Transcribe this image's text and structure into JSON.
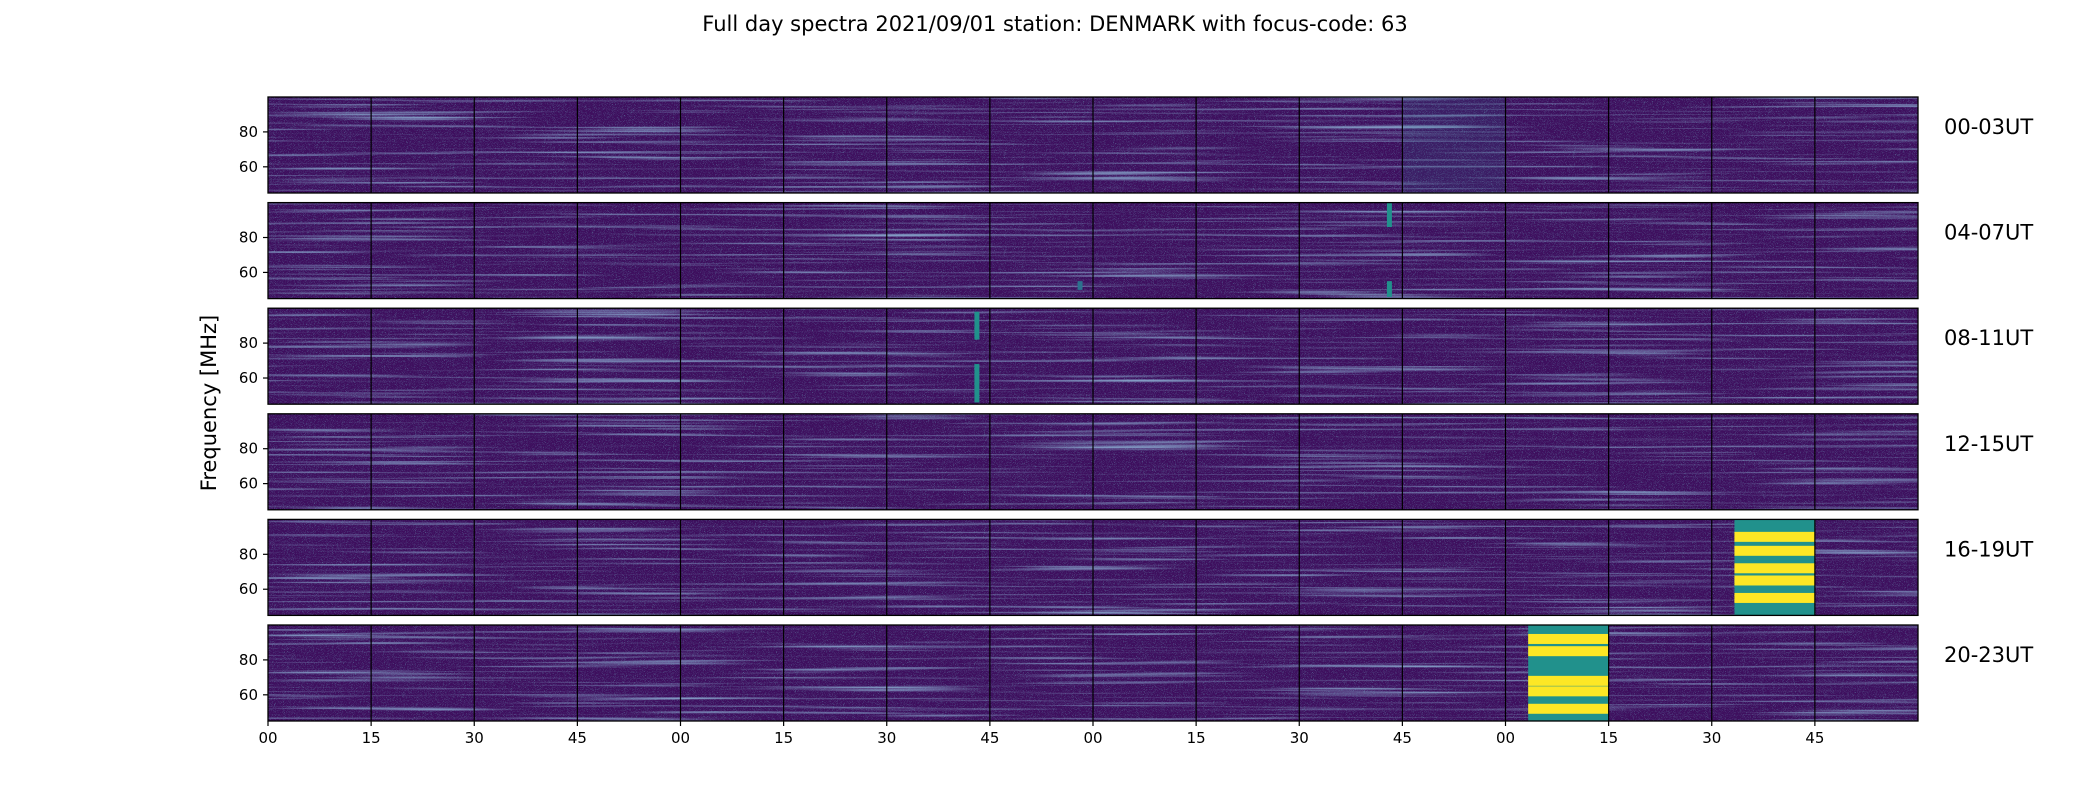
{
  "chart_data": {
    "type": "heatmap",
    "title": "Full day spectra 2021/09/01 station: DENMARK with focus-code: 63",
    "ylabel": "Frequency [MHz]",
    "xlabel": "",
    "colormap": "viridis",
    "colormap_colors": [
      "#440154",
      "#472d7b",
      "#3b528b",
      "#2c728e",
      "#21918c",
      "#28ae80",
      "#5ec962",
      "#addc30",
      "#fde725"
    ],
    "background_color": "#3e0f5e",
    "yticks": [
      60,
      80
    ],
    "ylim": [
      45,
      100
    ],
    "xticks": [
      "00",
      "15",
      "30",
      "45",
      "00",
      "15",
      "30",
      "45",
      "00",
      "15",
      "30",
      "45",
      "00",
      "15",
      "30",
      "45"
    ],
    "panels_per_row": 16,
    "rows": [
      {
        "label": "00-03UT",
        "bright_features": [
          {
            "panel": 11,
            "freq_lo": 45,
            "freq_hi": 100,
            "level": 0.15
          }
        ]
      },
      {
        "label": "04-07UT",
        "bright_features": [
          {
            "panel": 10,
            "freq_lo": 86,
            "freq_hi": 100,
            "level": 0.5
          },
          {
            "panel": 10,
            "freq_lo": 46,
            "freq_hi": 55,
            "level": 0.45
          },
          {
            "panel": 7,
            "freq_lo": 50,
            "freq_hi": 55,
            "level": 0.35
          }
        ]
      },
      {
        "label": "08-11UT",
        "bright_features": [
          {
            "panel": 6,
            "freq_lo": 82,
            "freq_hi": 98,
            "level": 0.55
          },
          {
            "panel": 6,
            "freq_lo": 46,
            "freq_hi": 68,
            "level": 0.45
          }
        ]
      },
      {
        "label": "12-15UT",
        "bright_features": []
      },
      {
        "label": "16-19UT",
        "bright_features": [
          {
            "panel": 14,
            "freq_lo": 45,
            "freq_hi": 100,
            "level": 0.7,
            "bursts": [
              90,
              82,
              72,
              65,
              55
            ]
          }
        ]
      },
      {
        "label": "20-23UT",
        "bright_features": [
          {
            "panel": 12,
            "freq_lo": 45,
            "freq_hi": 100,
            "level": 0.7,
            "bursts": [
              92,
              85,
              68,
              62,
              52
            ]
          }
        ]
      }
    ]
  }
}
